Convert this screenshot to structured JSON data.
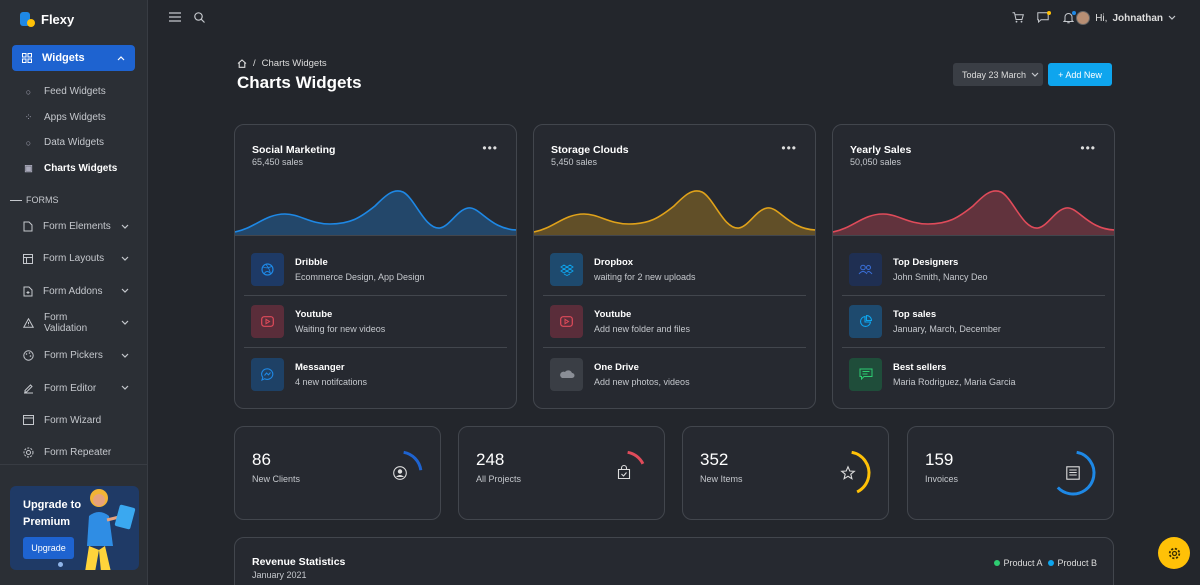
{
  "brand": {
    "name": "Flexy"
  },
  "sidebar": {
    "active_group": "Widgets",
    "widget_items": [
      {
        "label": "Feed Widgets",
        "icon": "circle-icon"
      },
      {
        "label": "Apps Widgets",
        "icon": "apps-icon"
      },
      {
        "label": "Data Widgets",
        "icon": "circle-icon"
      },
      {
        "label": "Charts Widgets",
        "icon": "chart-icon"
      }
    ],
    "forms_label": "FORMS",
    "form_items": [
      "Form Elements",
      "Form Layouts",
      "Form Addons",
      "Form Validation",
      "Form Pickers",
      "Form Editor",
      "Form Wizard",
      "Form Repeater"
    ],
    "upgrade": {
      "title": "Upgrade to Premium",
      "button": "Upgrade"
    }
  },
  "topbar": {
    "greeting": "Hi,",
    "user_name": "Johnathan"
  },
  "header": {
    "breadcrumb": "Charts Widgets",
    "title": "Charts Widgets",
    "date_label": "Today 23 March",
    "add_label": "+ Add New"
  },
  "chart_cards": [
    {
      "title": "Social Marketing",
      "subtitle": "65,450 sales",
      "color": "#1e88e5",
      "rows": [
        {
          "title": "Dribble",
          "desc": "Ecommerce Design, App Design"
        },
        {
          "title": "Youtube",
          "desc": "Waiting for new videos"
        },
        {
          "title": "Messanger",
          "desc": "4 new notifcations"
        }
      ]
    },
    {
      "title": "Storage Clouds",
      "subtitle": "5,450 sales",
      "color": "#e0a21a",
      "rows": [
        {
          "title": "Dropbox",
          "desc": "waiting for 2 new uploads"
        },
        {
          "title": "Youtube",
          "desc": "Add new folder and files"
        },
        {
          "title": "One Drive",
          "desc": "Add new photos, videos"
        }
      ]
    },
    {
      "title": "Yearly Sales",
      "subtitle": "50,050 sales",
      "color": "#e04b5a",
      "rows": [
        {
          "title": "Top Designers",
          "desc": "John Smith, Nancy Deo"
        },
        {
          "title": "Top sales",
          "desc": "January, March, December"
        },
        {
          "title": "Best sellers",
          "desc": "Maria Rodriguez, Maria Garcia"
        }
      ]
    }
  ],
  "stats": [
    {
      "value": "86",
      "label": "New Clients",
      "color": "#1e63d0",
      "progress": 0.2
    },
    {
      "value": "248",
      "label": "All Projects",
      "color": "#e04b5a",
      "progress": 0.15
    },
    {
      "value": "352",
      "label": "New Items",
      "color": "#ffc107",
      "progress": 0.4
    },
    {
      "value": "159",
      "label": "Invoices",
      "color": "#1e88e5",
      "progress": 0.6
    }
  ],
  "revenue": {
    "title": "Revenue Statistics",
    "subtitle": "January 2021",
    "legend": [
      {
        "label": "Product A",
        "color": "#2ecc71"
      },
      {
        "label": "Product B",
        "color": "#0ea5ee"
      }
    ]
  }
}
